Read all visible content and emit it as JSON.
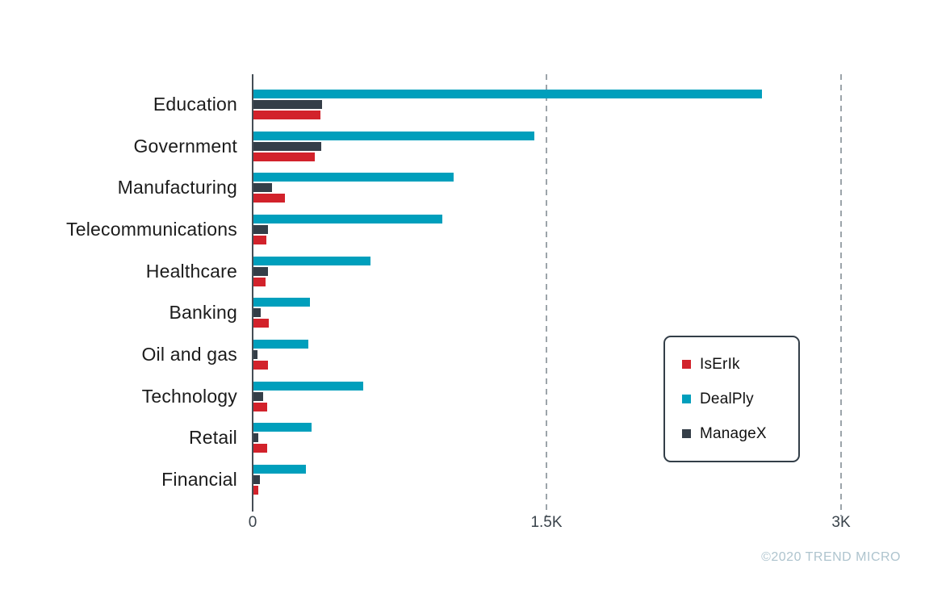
{
  "chart_data": {
    "type": "bar",
    "orientation": "horizontal",
    "title": "",
    "xlabel": "",
    "ylabel": "",
    "categories": [
      "Education",
      "Government",
      "Manufacturing",
      "Telecommunications",
      "Healthcare",
      "Banking",
      "Oil and gas",
      "Technology",
      "Retail",
      "Financial"
    ],
    "series": [
      {
        "name": "IsErIk",
        "color": "#D2222B",
        "values": [
          340,
          312,
          160,
          64,
          62,
          78,
          74,
          70,
          68,
          25
        ]
      },
      {
        "name": "DealPly",
        "color": "#009FBC",
        "values": [
          2590,
          1430,
          1020,
          960,
          595,
          288,
          280,
          558,
          294,
          267
        ]
      },
      {
        "name": "ManageX",
        "color": "#343E48",
        "values": [
          348,
          344,
          95,
          72,
          72,
          37,
          20,
          49,
          25,
          33
        ]
      }
    ],
    "bar_order_top_to_bottom": [
      "DealPly",
      "ManageX",
      "IsErIk"
    ],
    "xlim": [
      0,
      3000
    ],
    "x_tick_values": [
      0,
      1500,
      3000
    ],
    "x_ticks": [
      "0",
      "1.5K",
      "3K"
    ],
    "grid": "dashed vertical gridlines at 1.5K and 3K",
    "legend_position": "middle-right"
  },
  "legend": {
    "items": [
      {
        "label": "IsErIk",
        "color": "#D2222B"
      },
      {
        "label": "DealPly",
        "color": "#009FBC"
      },
      {
        "label": "ManageX",
        "color": "#343E48"
      }
    ]
  },
  "footer": {
    "copyright": "©2020 TREND MICRO"
  }
}
